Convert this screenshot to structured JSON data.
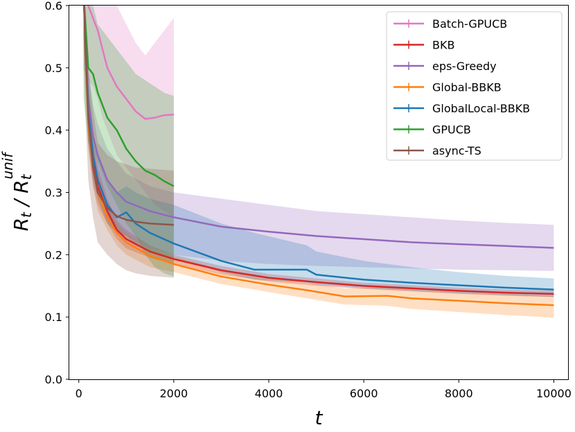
{
  "chart_data": {
    "type": "line",
    "xlabel": "t",
    "ylabel": "R_t / R_t^unif",
    "xlim": [
      -200,
      10300
    ],
    "ylim": [
      0.0,
      0.6
    ],
    "xticks": [
      0,
      2000,
      4000,
      6000,
      8000,
      10000
    ],
    "xtick_labels": [
      "0",
      "2000",
      "4000",
      "6000",
      "8000",
      "10000"
    ],
    "yticks": [
      0.0,
      0.1,
      0.2,
      0.3,
      0.4,
      0.5,
      0.6
    ],
    "ytick_labels": [
      "0.0",
      "0.1",
      "0.2",
      "0.3",
      "0.4",
      "0.5",
      "0.6"
    ],
    "grid": false,
    "legend_position": "top-right",
    "series": [
      {
        "name": "Batch-GPUCB",
        "color": "#e377c2",
        "x": [
          100,
          200,
          300,
          400,
          500,
          600,
          800,
          1000,
          1200,
          1400,
          1600,
          1800,
          2000
        ],
        "y": [
          0.62,
          0.6,
          0.58,
          0.56,
          0.53,
          0.5,
          0.47,
          0.45,
          0.43,
          0.418,
          0.42,
          0.424,
          0.425
        ],
        "lower": [
          0.5,
          0.48,
          0.47,
          0.45,
          0.42,
          0.4,
          0.36,
          0.34,
          0.32,
          0.3,
          0.28,
          0.27,
          0.26
        ],
        "upper": [
          0.62,
          0.62,
          0.62,
          0.62,
          0.62,
          0.62,
          0.6,
          0.57,
          0.54,
          0.52,
          0.54,
          0.56,
          0.58
        ]
      },
      {
        "name": "BKB",
        "color": "#d62728",
        "x": [
          100,
          200,
          300,
          400,
          600,
          800,
          1000,
          1500,
          2000,
          3000,
          4000,
          5000,
          6000,
          7000,
          8000,
          9000,
          10000
        ],
        "y": [
          0.62,
          0.42,
          0.35,
          0.31,
          0.27,
          0.24,
          0.225,
          0.205,
          0.193,
          0.175,
          0.163,
          0.156,
          0.15,
          0.146,
          0.142,
          0.139,
          0.137
        ],
        "lower": [
          0.55,
          0.38,
          0.31,
          0.28,
          0.25,
          0.225,
          0.21,
          0.195,
          0.185,
          0.168,
          0.157,
          0.15,
          0.145,
          0.141,
          0.137,
          0.134,
          0.132
        ],
        "upper": [
          0.62,
          0.46,
          0.38,
          0.34,
          0.29,
          0.255,
          0.24,
          0.215,
          0.2,
          0.182,
          0.169,
          0.162,
          0.155,
          0.151,
          0.147,
          0.144,
          0.142
        ]
      },
      {
        "name": "eps-Greedy",
        "color": "#9467bd",
        "x": [
          100,
          200,
          300,
          400,
          600,
          800,
          1000,
          1500,
          2000,
          3000,
          4000,
          5000,
          6000,
          7000,
          8000,
          9000,
          10000
        ],
        "y": [
          0.62,
          0.45,
          0.39,
          0.36,
          0.32,
          0.3,
          0.285,
          0.27,
          0.26,
          0.245,
          0.237,
          0.23,
          0.225,
          0.22,
          0.217,
          0.214,
          0.211
        ],
        "lower": [
          0.55,
          0.39,
          0.33,
          0.3,
          0.26,
          0.24,
          0.23,
          0.21,
          0.2,
          0.19,
          0.185,
          0.182,
          0.18,
          0.178,
          0.176,
          0.175,
          0.174
        ],
        "upper": [
          0.62,
          0.5,
          0.44,
          0.41,
          0.37,
          0.35,
          0.33,
          0.31,
          0.3,
          0.29,
          0.28,
          0.27,
          0.265,
          0.26,
          0.255,
          0.251,
          0.248
        ]
      },
      {
        "name": "Global-BBKB",
        "color": "#ff7f0e",
        "x": [
          100,
          200,
          300,
          400,
          600,
          800,
          1000,
          1500,
          2000,
          3000,
          4000,
          4800,
          5600,
          6500,
          7000,
          8000,
          9000,
          10000
        ],
        "y": [
          0.62,
          0.41,
          0.34,
          0.3,
          0.26,
          0.235,
          0.22,
          0.198,
          0.185,
          0.165,
          0.152,
          0.143,
          0.133,
          0.134,
          0.13,
          0.126,
          0.122,
          0.119
        ],
        "lower": [
          0.55,
          0.37,
          0.31,
          0.27,
          0.24,
          0.215,
          0.2,
          0.18,
          0.172,
          0.153,
          0.14,
          0.13,
          0.12,
          0.118,
          0.113,
          0.108,
          0.103,
          0.099
        ],
        "upper": [
          0.62,
          0.45,
          0.37,
          0.33,
          0.28,
          0.25,
          0.235,
          0.21,
          0.197,
          0.177,
          0.163,
          0.155,
          0.146,
          0.148,
          0.144,
          0.14,
          0.137,
          0.134
        ]
      },
      {
        "name": "GlobalLocal-BBKB",
        "color": "#1f77b4",
        "x": [
          100,
          200,
          300,
          400,
          600,
          800,
          1000,
          1200,
          1500,
          2000,
          3000,
          3700,
          4800,
          5000,
          6000,
          7000,
          8000,
          9000,
          10000
        ],
        "y": [
          0.62,
          0.43,
          0.36,
          0.32,
          0.28,
          0.26,
          0.268,
          0.25,
          0.235,
          0.218,
          0.19,
          0.176,
          0.176,
          0.168,
          0.16,
          0.155,
          0.151,
          0.147,
          0.144
        ],
        "lower": [
          0.55,
          0.38,
          0.32,
          0.29,
          0.25,
          0.235,
          0.23,
          0.215,
          0.205,
          0.195,
          0.172,
          0.16,
          0.155,
          0.152,
          0.146,
          0.142,
          0.138,
          0.135,
          0.132
        ],
        "upper": [
          0.62,
          0.48,
          0.4,
          0.36,
          0.32,
          0.3,
          0.31,
          0.3,
          0.29,
          0.28,
          0.25,
          0.235,
          0.215,
          0.205,
          0.19,
          0.18,
          0.172,
          0.166,
          0.162
        ]
      },
      {
        "name": "GPUCB",
        "color": "#2ca02c",
        "x": [
          100,
          200,
          300,
          400,
          500,
          600,
          800,
          1000,
          1200,
          1400,
          1600,
          1800,
          2000
        ],
        "y": [
          0.62,
          0.5,
          0.49,
          0.46,
          0.44,
          0.42,
          0.4,
          0.37,
          0.35,
          0.335,
          0.328,
          0.318,
          0.31
        ],
        "lower": [
          0.45,
          0.38,
          0.37,
          0.35,
          0.33,
          0.31,
          0.28,
          0.25,
          0.23,
          0.2,
          0.18,
          0.17,
          0.165
        ],
        "upper": [
          0.62,
          0.62,
          0.6,
          0.57,
          0.56,
          0.55,
          0.53,
          0.51,
          0.49,
          0.48,
          0.47,
          0.46,
          0.455
        ]
      },
      {
        "name": "async-TS",
        "color": "#8c564b",
        "x": [
          100,
          200,
          300,
          400,
          600,
          800,
          1000,
          1200,
          1500,
          2000
        ],
        "y": [
          0.62,
          0.42,
          0.34,
          0.3,
          0.275,
          0.262,
          0.256,
          0.253,
          0.25,
          0.248
        ],
        "lower": [
          0.5,
          0.32,
          0.26,
          0.22,
          0.2,
          0.185,
          0.175,
          0.17,
          0.166,
          0.163
        ],
        "upper": [
          0.62,
          0.5,
          0.43,
          0.38,
          0.36,
          0.35,
          0.345,
          0.34,
          0.338,
          0.335
        ]
      }
    ]
  }
}
